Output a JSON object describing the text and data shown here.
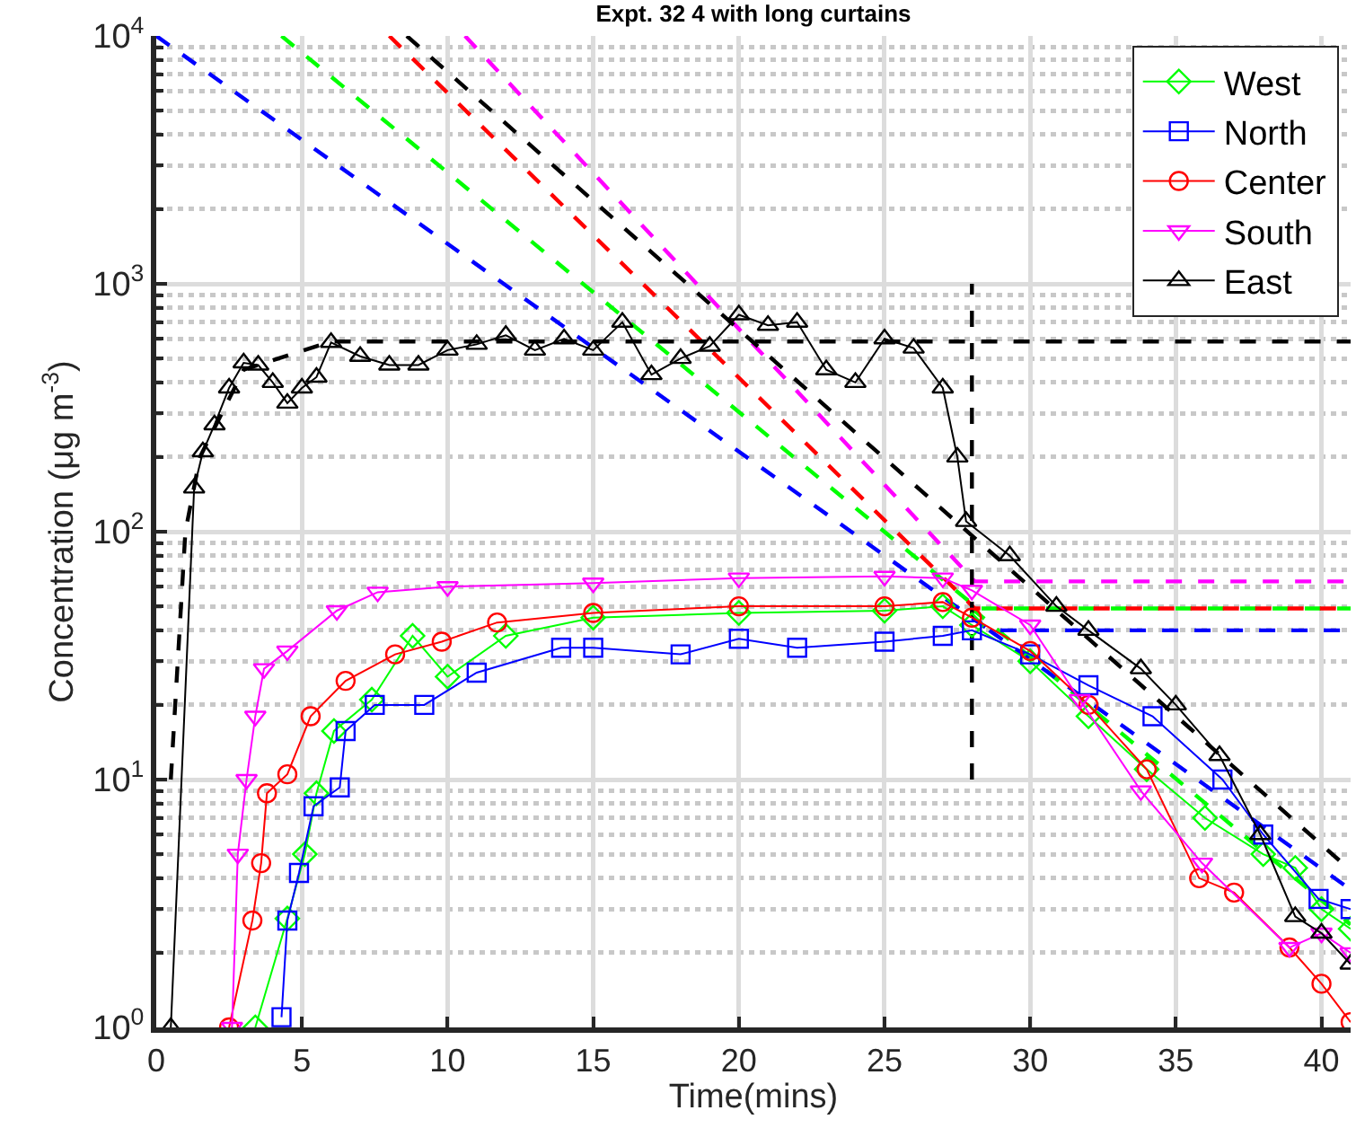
{
  "chart_data": {
    "type": "line",
    "title": "Expt. 32 4 with long curtains",
    "xlabel": "Time(mins)",
    "ylabel": "Concentration (μg m$^{-3}$)",
    "log": "y",
    "grid": true,
    "legend": "top right",
    "line_style": "solid",
    "xlim": [
      0,
      41
    ],
    "xticks": [
      0,
      5,
      10,
      15,
      20,
      25,
      30,
      35,
      40
    ],
    "ylim": [
      1,
      10000
    ],
    "yticks": [
      {
        "value": 1,
        "label": "10$^{0}$"
      },
      {
        "value": 10,
        "label": "10$^{1}$"
      },
      {
        "value": 100,
        "label": "10$^{2}$"
      },
      {
        "value": 1000,
        "label": "10$^{3}$"
      },
      {
        "value": 10000,
        "label": "10$^{4}$"
      }
    ],
    "series": [
      {
        "name": "West",
        "color": "#00ff00",
        "marker": "diamond",
        "x": [
          3.4,
          4.5,
          5.1,
          5.5,
          6.1,
          7.4,
          8.8,
          10,
          12,
          15,
          20,
          25,
          27,
          28,
          30,
          32,
          34,
          36,
          38,
          39.1,
          40,
          41
        ],
        "values": [
          1,
          2.75,
          5,
          8.8,
          15.7,
          21,
          38,
          26,
          38,
          45,
          47,
          48,
          50,
          42,
          30,
          18,
          11,
          7,
          5,
          4.4,
          3,
          2.5
        ]
      },
      {
        "name": "North",
        "color": "#0000ff",
        "marker": "square",
        "x": [
          4.3,
          4.5,
          4.9,
          5.4,
          6.3,
          6.5,
          7.5,
          9.2,
          11,
          13.9,
          15,
          18,
          20,
          22,
          25,
          27,
          28,
          30,
          32,
          34.2,
          36.6,
          38,
          39.9,
          41
        ],
        "values": [
          1.1,
          2.7,
          4.2,
          7.8,
          9.3,
          15.7,
          20,
          20,
          27,
          34,
          34,
          32,
          37,
          34,
          36,
          38,
          40,
          32,
          24,
          18,
          10,
          6,
          3.3,
          3
        ]
      },
      {
        "name": "Center",
        "color": "#ff0000",
        "marker": "circle",
        "x": [
          2.5,
          3.3,
          3.6,
          3.8,
          4.5,
          5.3,
          6.5,
          8.2,
          9.8,
          11.7,
          15,
          20,
          25,
          27,
          28,
          30,
          32,
          34,
          35.8,
          37,
          38.9,
          40,
          41
        ],
        "values": [
          1,
          2.7,
          4.6,
          8.8,
          10.5,
          18,
          25,
          32,
          36,
          43,
          47,
          50,
          50,
          52,
          45,
          33,
          20,
          11,
          4,
          3.5,
          2.1,
          1.5,
          1.05
        ]
      },
      {
        "name": "South",
        "color": "#ff00ff",
        "marker": "triangle-down",
        "x": [
          2.6,
          2.8,
          3.1,
          3.4,
          3.7,
          4.5,
          6.2,
          7.6,
          10,
          15,
          20,
          25,
          27,
          28,
          30,
          31.7,
          33.8,
          35.9,
          38.9,
          40,
          41
        ],
        "values": [
          1,
          5,
          10,
          18,
          28,
          33,
          48,
          57,
          60,
          62,
          65,
          66,
          65,
          58,
          42,
          21,
          9,
          4.6,
          2.1,
          2.4,
          2
        ]
      },
      {
        "name": "East",
        "color": "#000000",
        "marker": "triangle",
        "x": [
          0.5,
          1.3,
          1.6,
          2,
          2.5,
          3,
          3.5,
          4,
          4.5,
          5,
          5.5,
          6,
          7,
          8,
          9,
          10,
          11,
          12,
          13,
          14,
          15,
          16,
          17,
          18,
          19,
          20,
          21,
          22,
          23,
          24,
          25,
          26,
          27,
          27.5,
          27.8,
          29.3,
          30.9,
          32,
          33.8,
          35,
          36.5,
          37.9,
          39.1,
          40,
          41
        ],
        "values": [
          1,
          150,
          210,
          270,
          380,
          480,
          470,
          400,
          330,
          380,
          420,
          580,
          510,
          470,
          470,
          540,
          570,
          620,
          540,
          600,
          540,
          700,
          430,
          500,
          560,
          750,
          680,
          700,
          450,
          400,
          600,
          550,
          380,
          200,
          110,
          80,
          50,
          40,
          28,
          20,
          12.5,
          6,
          2.8,
          2.4,
          1.8
        ]
      },
      {
        "type": "line",
        "color": "#00ff00",
        "marker": "none",
        "line_style": "dashed",
        "x": [
          4.3,
          28.2,
          41,
          null,
          28,
          41
        ],
        "values": [
          10000,
          49,
          49,
          null,
          49,
          2.6
        ]
      },
      {
        "type": "line",
        "color": "#0000ff",
        "marker": "none",
        "line_style": "dashed",
        "x": [
          0,
          28.6,
          41,
          null,
          28.6,
          41
        ],
        "values": [
          10000,
          40,
          40,
          null,
          40,
          3.6
        ]
      },
      {
        "type": "line",
        "color": "#ff0000",
        "marker": "none",
        "line_style": "dashed",
        "x": [
          8,
          28.1,
          41
        ],
        "values": [
          10000,
          49,
          49
        ]
      },
      {
        "type": "line",
        "color": "#ff00ff",
        "marker": "none",
        "line_style": "dashed",
        "x": [
          10.6,
          28.1,
          41
        ],
        "values": [
          10000,
          63,
          63
        ]
      },
      {
        "type": "line",
        "color": "#000000",
        "marker": "none",
        "line_style": "dashed",
        "x": [
          8.6,
          41,
          null,
          0.5,
          1,
          1.5,
          3,
          6,
          41,
          null,
          28,
          28
        ],
        "values": [
          10000,
          4.3,
          null,
          10,
          100,
          200,
          450,
          585,
          585,
          null,
          10,
          1000
        ]
      }
    ]
  }
}
